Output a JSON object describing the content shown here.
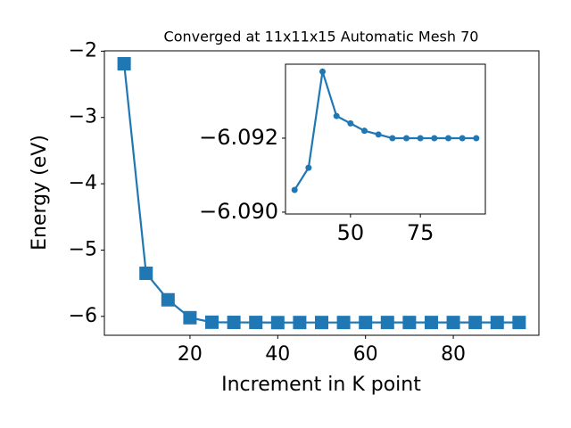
{
  "chart_data": [
    {
      "type": "line",
      "title": "Converged at 11x11x15 Automatic Mesh 70",
      "x_label": "Increment in K point",
      "y_label": "Energy (eV)",
      "x": [
        5,
        10,
        15,
        20,
        25,
        30,
        35,
        40,
        45,
        50,
        55,
        60,
        65,
        70,
        75,
        80,
        85,
        90,
        95
      ],
      "values": [
        -2.19,
        -5.35,
        -5.75,
        -6.02,
        -6.088,
        -6.0906,
        -6.0912,
        -6.0938,
        -6.0926,
        -6.0924,
        -6.0922,
        -6.0921,
        -6.092,
        -6.092,
        -6.092,
        -6.092,
        -6.092,
        -6.092,
        -6.092
      ],
      "color": "#1f77b4",
      "marker": "square",
      "xlim": [
        0.5,
        99.5
      ],
      "ylim": [
        -6.285,
        -1.995
      ],
      "xticks": [
        20,
        40,
        60,
        80
      ],
      "yticks": [
        {
          "value": -6,
          "label": "−6"
        },
        {
          "value": -5,
          "label": "−5"
        },
        {
          "value": -4,
          "label": "−4"
        },
        {
          "value": -3,
          "label": "−3"
        },
        {
          "value": -2,
          "label": "−2"
        }
      ]
    },
    {
      "type": "line",
      "x": [
        30,
        35,
        40,
        45,
        50,
        55,
        60,
        65,
        70,
        75,
        80,
        85,
        90,
        95
      ],
      "values": [
        -6.0906,
        -6.0912,
        -6.0938,
        -6.0926,
        -6.0924,
        -6.0922,
        -6.0921,
        -6.092,
        -6.092,
        -6.092,
        -6.092,
        -6.092,
        -6.092,
        -6.092
      ],
      "color": "#1f77b4",
      "marker": "circle",
      "xlim": [
        26.75,
        98.25
      ],
      "ylim": [
        -6.08995,
        -6.094
      ],
      "xticks": [
        50,
        75
      ],
      "yticks": [
        {
          "value": -6.092,
          "label": "−6.092"
        },
        {
          "value": -6.09,
          "label": "−6.090"
        }
      ]
    }
  ]
}
